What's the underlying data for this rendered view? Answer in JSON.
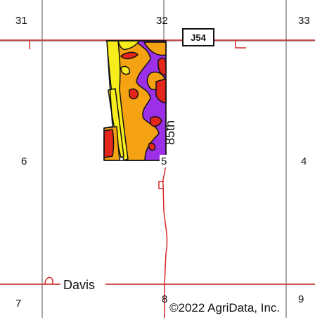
{
  "sections": {
    "s31": "31",
    "s32": "32",
    "s33": "33",
    "s6": "6",
    "s5": "5",
    "s4": "4",
    "s7": "7",
    "s8": "8",
    "s9": "9"
  },
  "roads": {
    "highway_shield": "J54",
    "north_south_road": "85th",
    "east_west_road": "Davis"
  },
  "copyright": "©2022 AgriData, Inc.",
  "colors": {
    "section_line": "#8a8a8a",
    "road_line": "#d42a2a",
    "soil_yellow": "#f7ec1c",
    "soil_orange": "#f5a312",
    "soil_purple": "#9b30e6",
    "soil_red": "#e5261c",
    "soil_outline": "#111111"
  }
}
